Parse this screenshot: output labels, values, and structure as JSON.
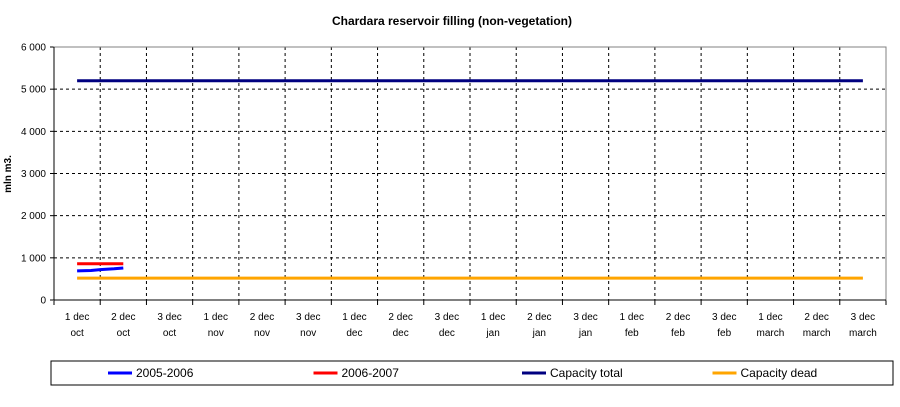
{
  "chart_data": {
    "type": "line",
    "title": "Chardara reservoir filling  (non-vegetation)",
    "xlabel": "",
    "ylabel": "mln m3.",
    "ylim": [
      0,
      6000
    ],
    "yticks": [
      0,
      1000,
      2000,
      3000,
      4000,
      5000,
      6000
    ],
    "ytick_labels": [
      "0",
      "1 000",
      "2 000",
      "3 000",
      "4 000",
      "5 000",
      "6 000"
    ],
    "categories": [
      [
        "1 dec",
        "oct"
      ],
      [
        "2 dec",
        "oct"
      ],
      [
        "3 dec",
        "oct"
      ],
      [
        "1 dec",
        "nov"
      ],
      [
        "2 dec",
        "nov"
      ],
      [
        "3 dec",
        "nov"
      ],
      [
        "1 dec",
        "dec"
      ],
      [
        "2 dec",
        "dec"
      ],
      [
        "3 dec",
        "dec"
      ],
      [
        "1 dec",
        "jan"
      ],
      [
        "2 dec",
        "jan"
      ],
      [
        "3 dec",
        "jan"
      ],
      [
        "1 dec",
        "feb"
      ],
      [
        "2 dec",
        "feb"
      ],
      [
        "3 dec",
        "feb"
      ],
      [
        "1 dec",
        "march"
      ],
      [
        "2 dec",
        "march"
      ],
      [
        "3 dec",
        "march"
      ]
    ],
    "grid": true,
    "legend_position": "bottom",
    "series": [
      {
        "name": "2005-2006",
        "color": "#0000ff",
        "points": [
          [
            0,
            690
          ],
          [
            0.3,
            700
          ],
          [
            0.5,
            720
          ],
          [
            0.8,
            740
          ],
          [
            1.0,
            760
          ]
        ]
      },
      {
        "name": "2006-2007",
        "color": "#ff0000",
        "points": [
          [
            0,
            860
          ],
          [
            1.0,
            860
          ]
        ]
      },
      {
        "name": "Capacity total",
        "color": "#000080",
        "points": [
          [
            0,
            5200
          ],
          [
            17,
            5200
          ]
        ]
      },
      {
        "name": "Capacity dead",
        "color": "#ffa500",
        "points": [
          [
            0,
            520
          ],
          [
            17,
            520
          ]
        ]
      }
    ]
  }
}
